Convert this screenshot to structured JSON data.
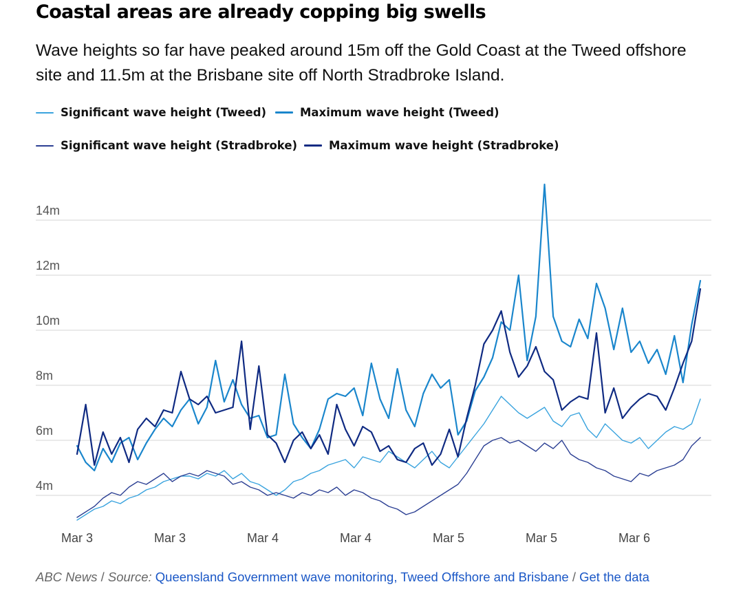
{
  "header": {
    "title": "Coastal areas are already copping big swells",
    "subtitle": "Wave heights so far have peaked around 15m off the Gold Coast at the Tweed offshore site and 11.5m at the Brisbane site off North Stradbroke Island."
  },
  "legend": [
    {
      "label": "Significant wave height (Tweed)",
      "color": "#39a3de",
      "weight": "thin"
    },
    {
      "label": "Maximum wave height (Tweed)",
      "color": "#1a86cc",
      "weight": "thick"
    },
    {
      "label": "Significant wave height (Stradbroke)",
      "color": "#2b3f93",
      "weight": "thin"
    },
    {
      "label": "Maximum wave height (Stradbroke)",
      "color": "#0f2a82",
      "weight": "thick"
    }
  ],
  "footer": {
    "credit": "ABC News",
    "source_prefix": "Source:",
    "source_link": "Queensland Government wave monitoring, Tweed Offshore and Brisbane",
    "get_data": "Get the data"
  },
  "chart_data": {
    "type": "line",
    "ylim": [
      3,
      15.5
    ],
    "y_ticks": [
      4,
      6,
      8,
      10,
      12,
      14
    ],
    "y_tick_labels": [
      "4m",
      "6m",
      "8m",
      "10m",
      "12m",
      "14m"
    ],
    "x_tick_labels": [
      "Mar 3",
      "Mar 3",
      "Mar 4",
      "Mar 4",
      "Mar 5",
      "Mar 5",
      "Mar 6"
    ],
    "grid": true,
    "series": [
      {
        "name": "Significant wave height (Tweed)",
        "color": "#39a3de",
        "width": 1.4,
        "values": [
          3.1,
          3.3,
          3.5,
          3.6,
          3.8,
          3.7,
          3.9,
          4.0,
          4.2,
          4.3,
          4.5,
          4.6,
          4.7,
          4.7,
          4.6,
          4.8,
          4.7,
          4.9,
          4.6,
          4.8,
          4.5,
          4.4,
          4.2,
          4.0,
          4.2,
          4.5,
          4.6,
          4.8,
          4.9,
          5.1,
          5.2,
          5.3,
          5.0,
          5.4,
          5.3,
          5.2,
          5.6,
          5.4,
          5.2,
          5.0,
          5.3,
          5.6,
          5.2,
          5.0,
          5.4,
          5.8,
          6.2,
          6.6,
          7.1,
          7.6,
          7.3,
          7.0,
          6.8,
          7.0,
          7.2,
          6.7,
          6.5,
          6.9,
          7.0,
          6.4,
          6.1,
          6.6,
          6.3,
          6.0,
          5.9,
          6.1,
          5.7,
          6.0,
          6.3,
          6.5,
          6.4,
          6.6,
          7.5
        ]
      },
      {
        "name": "Maximum wave height (Tweed)",
        "color": "#1a86cc",
        "width": 2.2,
        "values": [
          5.8,
          5.2,
          4.9,
          5.7,
          5.2,
          5.9,
          6.1,
          5.3,
          5.9,
          6.4,
          6.8,
          6.5,
          7.1,
          7.5,
          6.6,
          7.2,
          8.9,
          7.4,
          8.2,
          7.3,
          6.8,
          6.9,
          6.1,
          6.2,
          8.4,
          6.6,
          6.1,
          5.7,
          6.4,
          7.5,
          7.7,
          7.6,
          7.9,
          6.9,
          8.8,
          7.5,
          6.8,
          8.6,
          7.1,
          6.5,
          7.7,
          8.4,
          7.9,
          8.2,
          6.2,
          6.7,
          7.8,
          8.3,
          9.0,
          10.3,
          10.0,
          12.0,
          8.9,
          10.5,
          15.3,
          10.5,
          9.6,
          9.4,
          10.4,
          9.7,
          11.7,
          10.8,
          9.3,
          10.8,
          9.2,
          9.6,
          8.8,
          9.3,
          8.4,
          9.8,
          8.1,
          10.2,
          11.8
        ]
      },
      {
        "name": "Significant wave height (Stradbroke)",
        "color": "#2b3f93",
        "width": 1.4,
        "values": [
          3.2,
          3.4,
          3.6,
          3.9,
          4.1,
          4.0,
          4.3,
          4.5,
          4.4,
          4.6,
          4.8,
          4.5,
          4.7,
          4.8,
          4.7,
          4.9,
          4.8,
          4.7,
          4.4,
          4.5,
          4.3,
          4.2,
          4.0,
          4.1,
          4.0,
          3.9,
          4.1,
          4.0,
          4.2,
          4.1,
          4.3,
          4.0,
          4.2,
          4.1,
          3.9,
          3.8,
          3.6,
          3.5,
          3.3,
          3.4,
          3.6,
          3.8,
          4.0,
          4.2,
          4.4,
          4.8,
          5.3,
          5.8,
          6.0,
          6.1,
          5.9,
          6.0,
          5.8,
          5.6,
          5.9,
          5.7,
          6.0,
          5.5,
          5.3,
          5.2,
          5.0,
          4.9,
          4.7,
          4.6,
          4.5,
          4.8,
          4.7,
          4.9,
          5.0,
          5.1,
          5.3,
          5.8,
          6.1
        ]
      },
      {
        "name": "Maximum wave height (Stradbroke)",
        "color": "#0f2a82",
        "width": 2.2,
        "values": [
          5.5,
          7.3,
          5.1,
          6.3,
          5.5,
          6.1,
          5.2,
          6.4,
          6.8,
          6.5,
          7.1,
          7.0,
          8.5,
          7.5,
          7.3,
          7.6,
          7.0,
          7.1,
          7.2,
          9.6,
          6.4,
          8.7,
          6.2,
          5.9,
          5.2,
          6.0,
          6.3,
          5.7,
          6.2,
          5.5,
          7.3,
          6.4,
          5.8,
          6.5,
          6.3,
          5.6,
          5.8,
          5.3,
          5.2,
          5.7,
          5.9,
          5.1,
          5.5,
          6.4,
          5.4,
          6.8,
          8.0,
          9.5,
          10.0,
          10.7,
          9.2,
          8.3,
          8.7,
          9.4,
          8.5,
          8.2,
          7.1,
          7.4,
          7.6,
          7.5,
          9.9,
          7.0,
          7.9,
          6.8,
          7.2,
          7.5,
          7.7,
          7.6,
          7.1,
          7.9,
          8.8,
          9.6,
          11.5
        ]
      }
    ]
  }
}
